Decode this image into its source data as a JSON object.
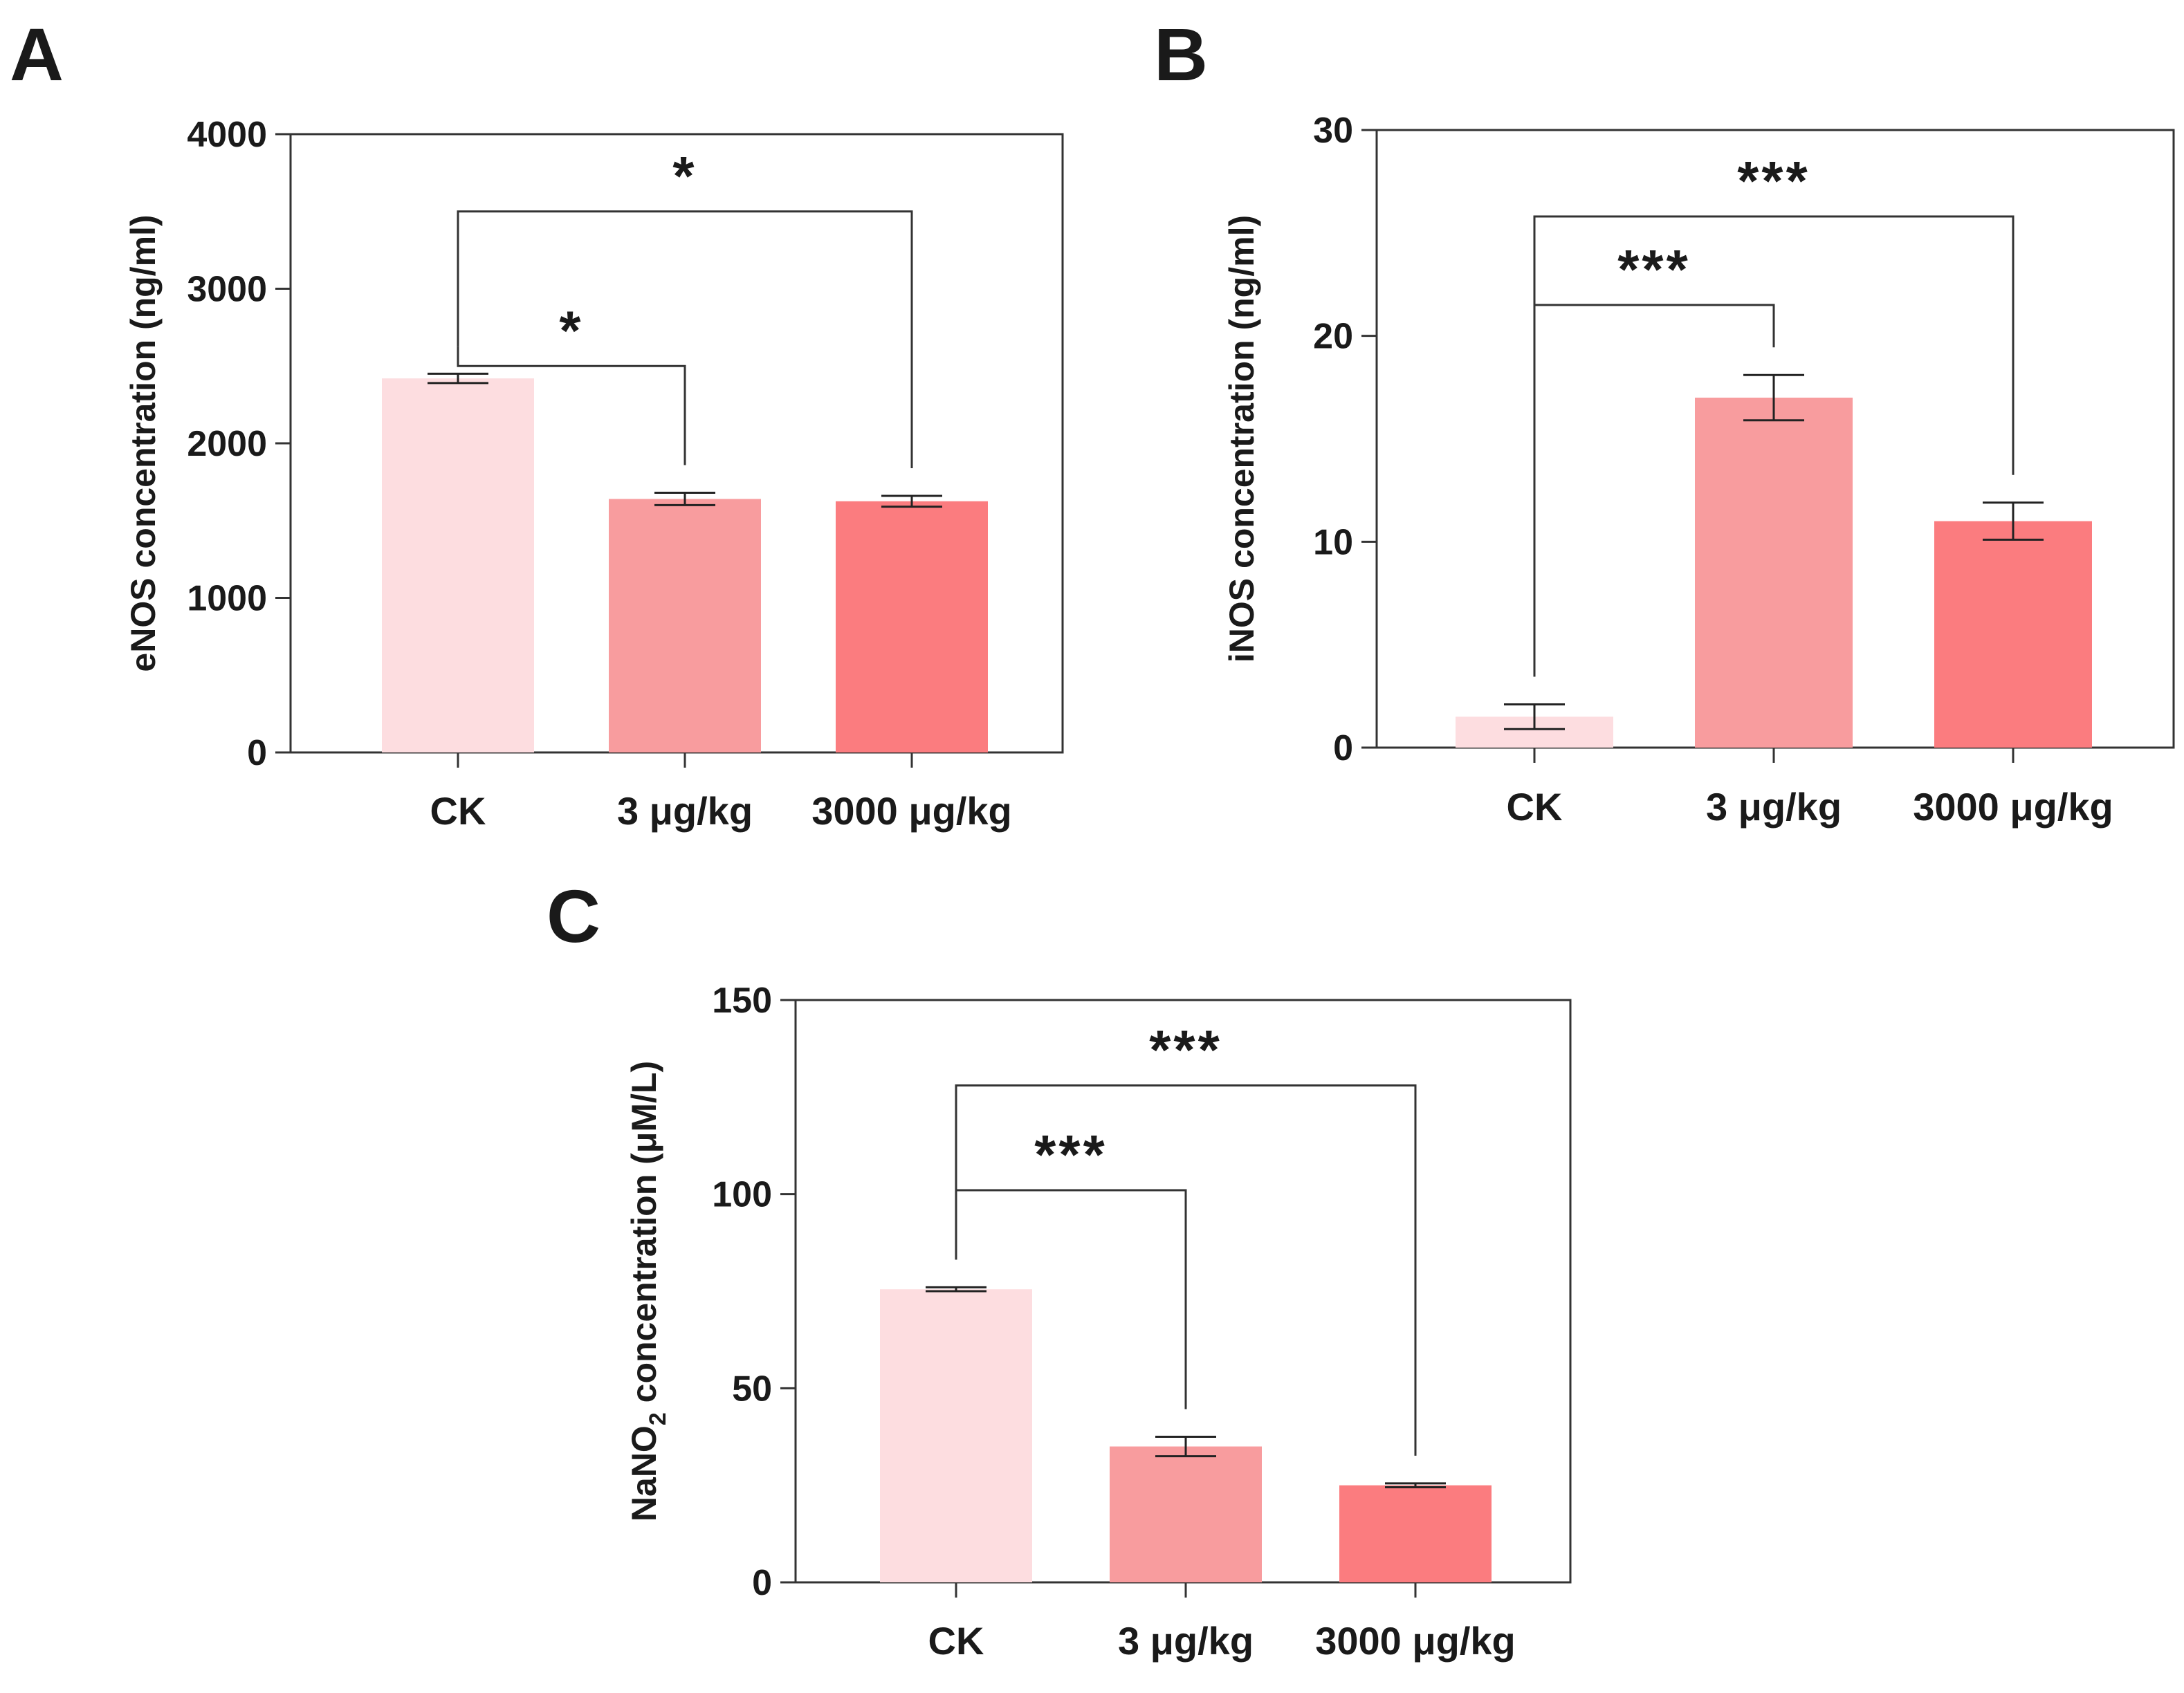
{
  "chart_data": [
    {
      "panel": "A",
      "type": "bar",
      "categories": [
        "CK",
        "3 μg/kg",
        "3000 μg/kg"
      ],
      "values": [
        2420,
        1640,
        1625
      ],
      "errors": [
        30,
        40,
        35
      ],
      "ylabel": "eNOS concentration (ng/ml)",
      "ylim": [
        0,
        4000
      ],
      "yticks": [
        0,
        1000,
        2000,
        3000,
        4000
      ],
      "comparisons": [
        {
          "from": 0,
          "to": 1,
          "label": "*",
          "level": 2500
        },
        {
          "from": 0,
          "to": 2,
          "label": "*",
          "level": 3500
        }
      ],
      "colors": [
        "#fddde0",
        "#f89c9e",
        "#fb7c7f"
      ]
    },
    {
      "panel": "B",
      "type": "bar",
      "categories": [
        "CK",
        "3 μg/kg",
        "3000 μg/kg"
      ],
      "values": [
        1.5,
        17.0,
        11.0
      ],
      "errors": [
        0.6,
        1.1,
        0.9
      ],
      "ylabel": "iNOS concentration (ng/ml)",
      "ylim": [
        0,
        30
      ],
      "yticks": [
        0,
        10,
        20,
        30
      ],
      "comparisons": [
        {
          "from": 0,
          "to": 1,
          "label": "***",
          "level": 21.5
        },
        {
          "from": 0,
          "to": 2,
          "label": "***",
          "level": 25.8
        }
      ],
      "colors": [
        "#fddde0",
        "#f89c9e",
        "#fb7c7f"
      ]
    },
    {
      "panel": "C",
      "type": "bar",
      "categories": [
        "CK",
        "3 μg/kg",
        "3000 μg/kg"
      ],
      "values": [
        75.5,
        35.0,
        25.0
      ],
      "errors": [
        0.5,
        2.5,
        0.5
      ],
      "ylabel": "NaNO",
      "ylabel_subscript": "2",
      "ylabel_rest": " concentration (μM/L)",
      "ylim": [
        0,
        150
      ],
      "yticks": [
        0,
        50,
        100,
        150
      ],
      "comparisons": [
        {
          "from": 0,
          "to": 1,
          "label": "***",
          "level": 101
        },
        {
          "from": 0,
          "to": 2,
          "label": "***",
          "level": 128
        }
      ],
      "colors": [
        "#fddde0",
        "#f89c9e",
        "#fb7c7f"
      ]
    }
  ]
}
